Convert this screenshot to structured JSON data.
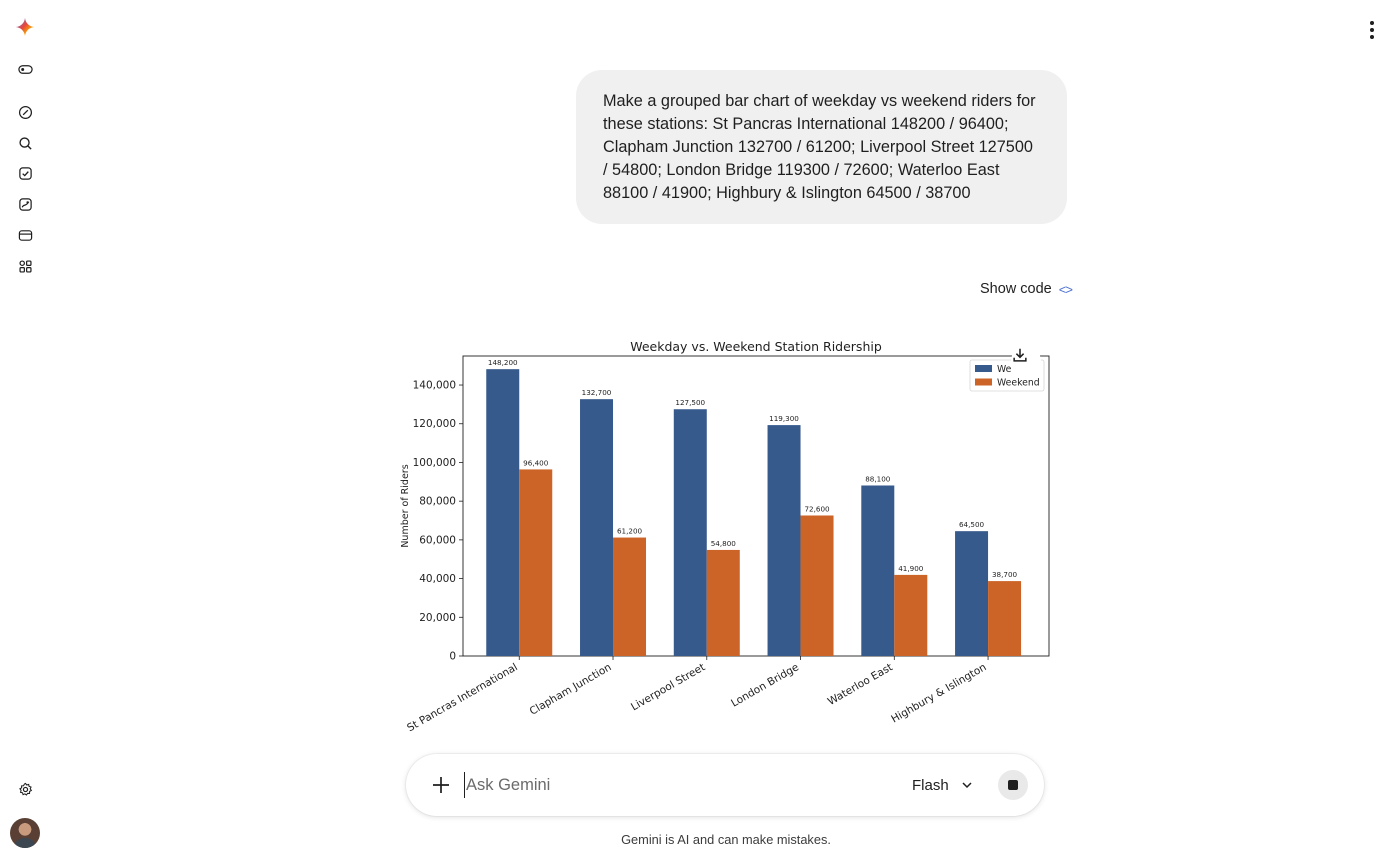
{
  "sidebar": {
    "items": [
      {
        "name": "gemini-logo-icon"
      },
      {
        "name": "toggle-sidebar-icon"
      },
      {
        "name": "new-chat-icon"
      },
      {
        "name": "search-icon"
      },
      {
        "name": "tasks-icon"
      },
      {
        "name": "gallery-icon"
      },
      {
        "name": "window-icon"
      },
      {
        "name": "apps-icon"
      },
      {
        "name": "gear-icon"
      }
    ]
  },
  "user_message": "Make a grouped bar chart of weekday vs weekend riders for these stations: St Pancras International 148200 / 96400; Clapham Junction 132700 / 61200; Liverpool Street 127500 / 54800; London Bridge 119300 / 72600; Waterloo East 88100 / 41900; Highbury & Islington 64500 / 38700",
  "show_code_label": "Show code",
  "chart_data": {
    "type": "bar",
    "title": "Weekday vs. Weekend Station Ridership",
    "xlabel": "",
    "ylabel": "Number of Riders",
    "categories": [
      "St Pancras International",
      "Clapham Junction",
      "Liverpool Street",
      "London Bridge",
      "Waterloo East",
      "Highbury & Islington"
    ],
    "series": [
      {
        "name": "Weekday",
        "values": [
          148200,
          132700,
          127500,
          119300,
          88100,
          64500
        ],
        "color": "#375a8c",
        "labels": [
          "148,200",
          "132,700",
          "127,500",
          "119,300",
          "88,100",
          "64,500"
        ]
      },
      {
        "name": "Weekend",
        "values": [
          96400,
          61200,
          54800,
          72600,
          41900,
          38700
        ],
        "color": "#cc6428",
        "labels": [
          "96,400",
          "61,200",
          "54,800",
          "72,600",
          "41,900",
          "38,700"
        ]
      }
    ],
    "ylim": [
      0,
      155000
    ],
    "yticks": [
      0,
      20000,
      40000,
      60000,
      80000,
      100000,
      120000,
      140000
    ],
    "ytick_labels": [
      "0",
      "20,000",
      "40,000",
      "60,000",
      "80,000",
      "100,000",
      "120,000",
      "140,000"
    ],
    "legend_position": "top-right",
    "legend_visible_labels": [
      "We",
      "Weekend"
    ],
    "grid": false
  },
  "input": {
    "placeholder": "Ask Gemini",
    "model_label": "Flash"
  },
  "disclaimer": "Gemini is AI and can make mistakes."
}
